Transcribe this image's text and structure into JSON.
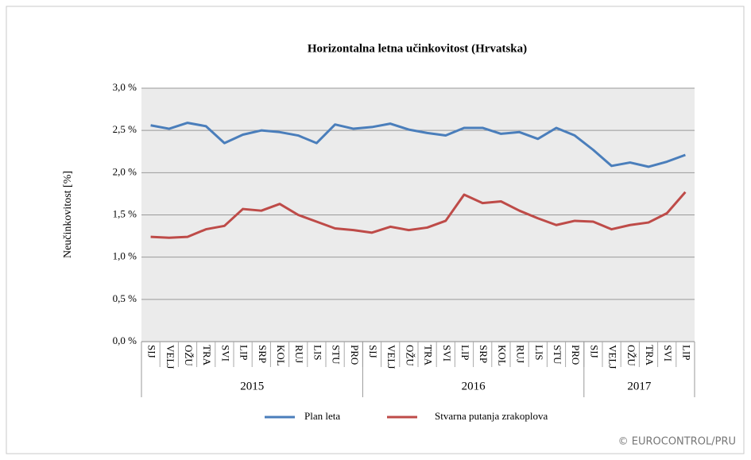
{
  "chart_data": {
    "type": "line",
    "title": "Horizontalna  letna učinkovitost (Hrvatska)",
    "y_label": "Neučinkovitost  [%]",
    "categories": [
      "SIJ",
      "VELJ",
      "OŽU",
      "TRA",
      "SVI",
      "LIP",
      "SRP",
      "KOL",
      "RUJ",
      "LIS",
      "STU",
      "PRO",
      "SIJ",
      "VELJ",
      "OŽU",
      "TRA",
      "SVI",
      "LIP",
      "SRP",
      "KOL",
      "RUJ",
      "LIS",
      "STU",
      "PRO",
      "SIJ",
      "VELJ",
      "OŽU",
      "TRA",
      "SVI",
      "LIP"
    ],
    "year_groups": [
      {
        "label": "2015",
        "span": 12
      },
      {
        "label": "2016",
        "span": 12
      },
      {
        "label": "2017",
        "span": 6
      }
    ],
    "series": [
      {
        "name": "Plan leta",
        "color": "#4a7ebb",
        "values": [
          2.56,
          2.52,
          2.59,
          2.55,
          2.35,
          2.45,
          2.5,
          2.48,
          2.44,
          2.35,
          2.57,
          2.52,
          2.54,
          2.58,
          2.51,
          2.47,
          2.44,
          2.53,
          2.53,
          2.46,
          2.48,
          2.4,
          2.53,
          2.44,
          2.27,
          2.08,
          2.12,
          2.07,
          2.13,
          2.21
        ]
      },
      {
        "name": "Stvarna putanja zrakoplova",
        "color": "#be4b48",
        "values": [
          1.24,
          1.23,
          1.24,
          1.33,
          1.37,
          1.57,
          1.55,
          1.63,
          1.5,
          1.42,
          1.34,
          1.32,
          1.29,
          1.36,
          1.32,
          1.35,
          1.43,
          1.74,
          1.64,
          1.66,
          1.55,
          1.46,
          1.38,
          1.43,
          1.42,
          1.33,
          1.38,
          1.41,
          1.52,
          1.77
        ]
      }
    ],
    "ylim": [
      0,
      3
    ],
    "yticks": [
      {
        "value": 0,
        "label": "0,0 %"
      },
      {
        "value": 0.5,
        "label": "0,5 %"
      },
      {
        "value": 1,
        "label": "1,0 %"
      },
      {
        "value": 1.5,
        "label": "1,5 %"
      },
      {
        "value": 2,
        "label": "2,0 %"
      },
      {
        "value": 2.5,
        "label": "2,5 %"
      },
      {
        "value": 3,
        "label": "3,0 %"
      }
    ],
    "grid": true,
    "legend": "bottom",
    "source": "© EUROCONTROL/PRU"
  }
}
